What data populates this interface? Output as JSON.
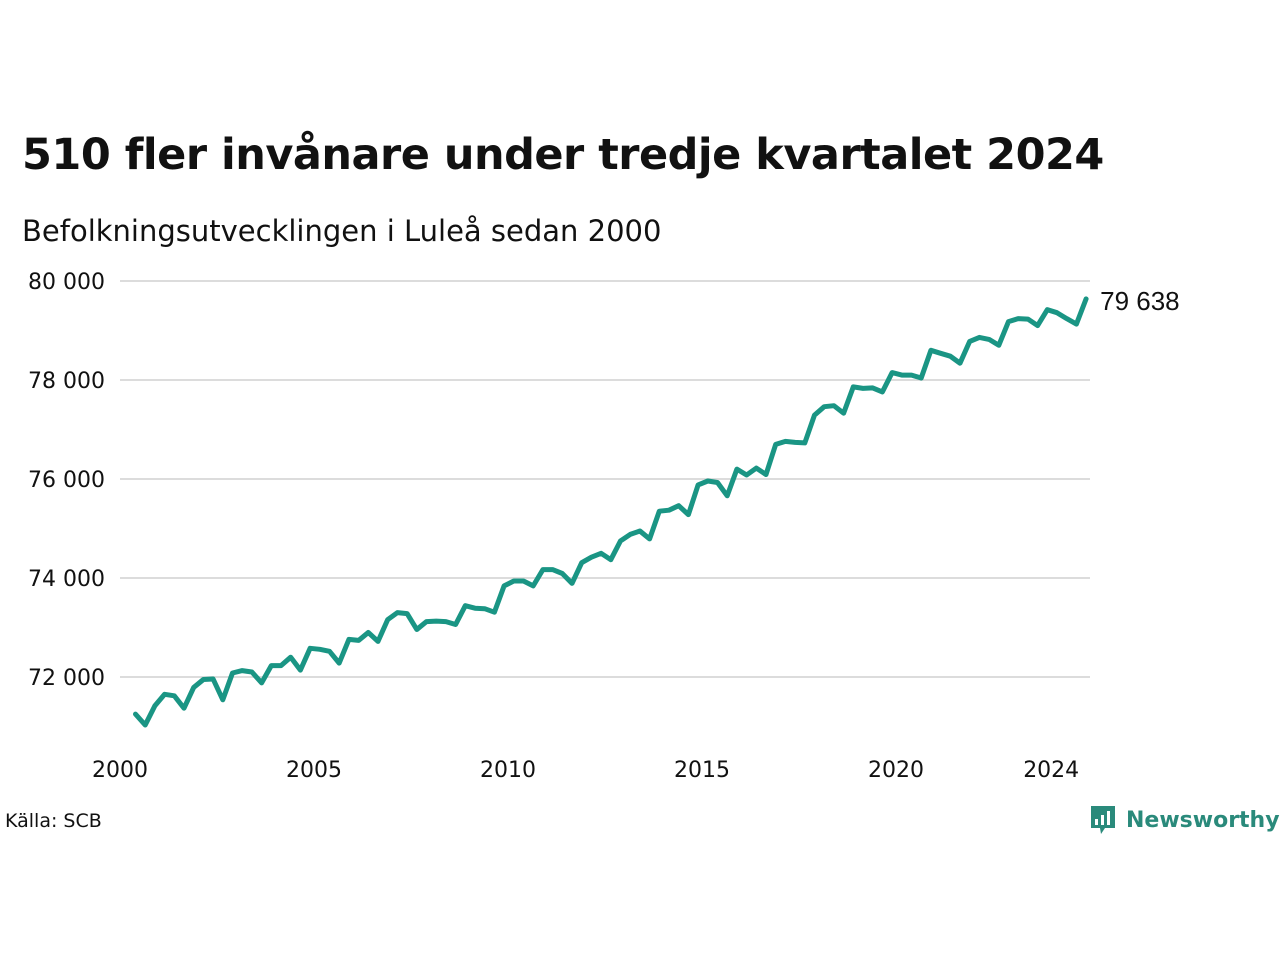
{
  "title": "510 fler invånare under tredje kvartalet 2024",
  "subtitle": "Befolkningsutvecklingen i Luleå sedan 2000",
  "source": "Källa: SCB",
  "brand": {
    "name": "Newsworthy",
    "icon": "newsworthy-logo-icon",
    "color": "#2a8a7b"
  },
  "chart_data": {
    "type": "line",
    "title": "510 fler invånare under tredje kvartalet 2024",
    "subtitle": "Befolkningsutvecklingen i Luleå sedan 2000",
    "xlabel": "",
    "ylabel": "",
    "x_frequency": "quarterly",
    "x_start": "2000-Q1",
    "x_ticks": [
      2000,
      2005,
      2010,
      2015,
      2020,
      2024
    ],
    "x_tick_labels": [
      "2000",
      "2005",
      "2010",
      "2015",
      "2020",
      "2024"
    ],
    "y_ticks": [
      72000,
      74000,
      76000,
      78000,
      80000
    ],
    "y_tick_labels": [
      "72 000",
      "74 000",
      "76 000",
      "78 000",
      "80 000"
    ],
    "ylim": [
      70900,
      80000
    ],
    "grid": "horizontal",
    "line_color": "#1a9584",
    "end_label": "79 638",
    "series": [
      {
        "values": [
          71250,
          71030,
          71420,
          71650,
          71620,
          71370,
          71790,
          71950,
          71960,
          71540,
          72080,
          72130,
          72100,
          71880,
          72230,
          72230,
          72400,
          72140,
          72580,
          72560,
          72520,
          72280,
          72760,
          72740,
          72900,
          72720,
          73160,
          73300,
          73280,
          72960,
          73120,
          73130,
          73120,
          73060,
          73440,
          73390,
          73380,
          73310,
          73840,
          73940,
          73940,
          73840,
          74170,
          74170,
          74090,
          73890,
          74310,
          74420,
          74500,
          74370,
          74750,
          74880,
          74950,
          74790,
          75350,
          75370,
          75460,
          75280,
          75880,
          75960,
          75930,
          75660,
          76200,
          76080,
          76220,
          76090,
          76700,
          76760,
          76740,
          76730,
          77290,
          77460,
          77480,
          77330,
          77860,
          77830,
          77840,
          77760,
          78150,
          78100,
          78100,
          78040,
          78600,
          78540,
          78480,
          78340,
          78780,
          78860,
          78820,
          78700,
          79180,
          79240,
          79230,
          79100,
          79420,
          79360,
          79240,
          79130,
          79638
        ]
      }
    ]
  }
}
